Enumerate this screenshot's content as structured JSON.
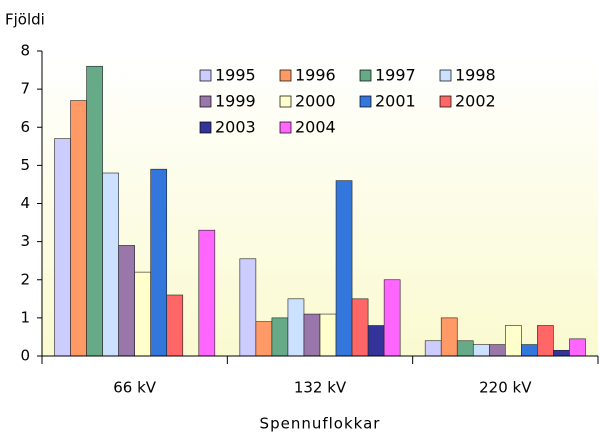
{
  "chart_data": {
    "type": "bar",
    "y_label": "Fjöldi",
    "x_label": "Spennuflokkar",
    "categories": [
      "66 kV",
      "132 kV",
      "220 kV"
    ],
    "series": [
      {
        "name": "1995",
        "color": "#ccccff",
        "values": [
          5.7,
          2.55,
          0.4
        ]
      },
      {
        "name": "1996",
        "color": "#ff9966",
        "values": [
          6.7,
          0.9,
          1.0
        ]
      },
      {
        "name": "1997",
        "color": "#66aa88",
        "values": [
          7.6,
          1.0,
          0.4
        ]
      },
      {
        "name": "1998",
        "color": "#cce0ff",
        "values": [
          4.8,
          1.5,
          0.3
        ]
      },
      {
        "name": "1999",
        "color": "#9977aa",
        "values": [
          2.9,
          1.1,
          0.3
        ]
      },
      {
        "name": "2000",
        "color": "#ffffcc",
        "values": [
          2.2,
          1.1,
          0.8
        ]
      },
      {
        "name": "2001",
        "color": "#3377dd",
        "values": [
          4.9,
          4.6,
          0.3
        ]
      },
      {
        "name": "2002",
        "color": "#ff6666",
        "values": [
          1.6,
          1.5,
          0.8
        ]
      },
      {
        "name": "2003",
        "color": "#333399",
        "values": [
          0,
          0.8,
          0.15
        ]
      },
      {
        "name": "2004",
        "color": "#ff66ff",
        "values": [
          3.3,
          2.0,
          0.45
        ]
      }
    ],
    "ylim": [
      0,
      8
    ],
    "yticks": [
      0,
      1,
      2,
      3,
      4,
      5,
      6,
      7,
      8
    ],
    "grid": false,
    "legend": "top-right"
  }
}
